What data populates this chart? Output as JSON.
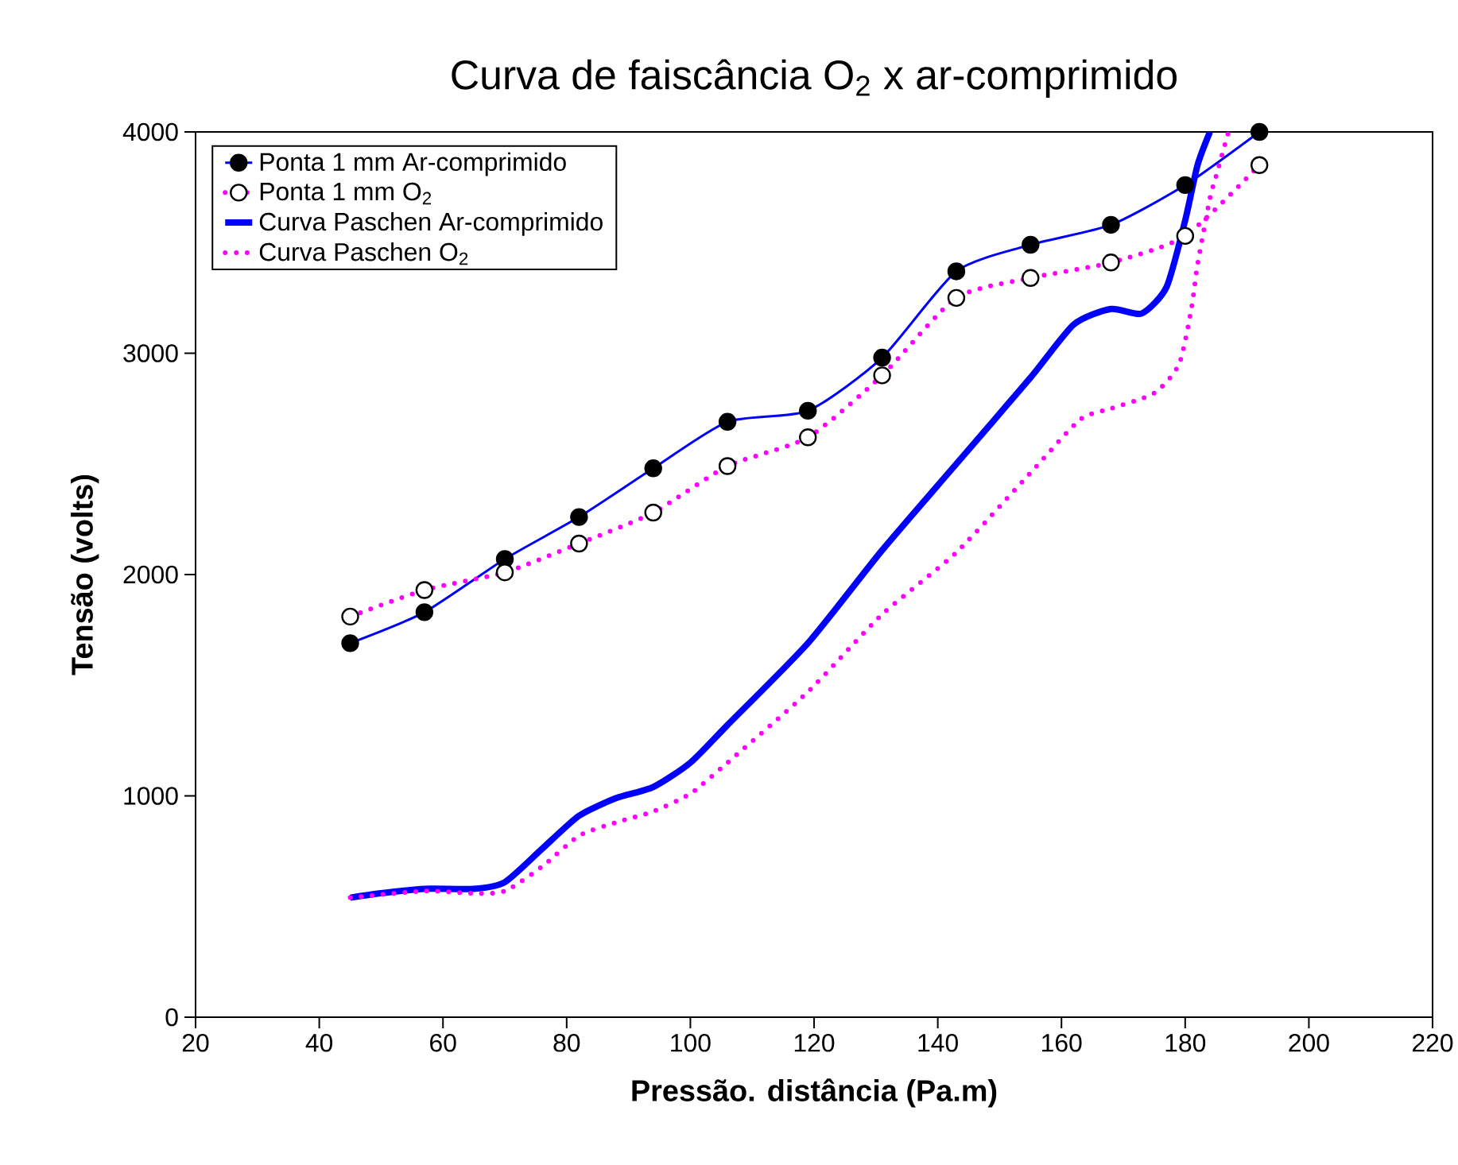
{
  "chart_data": {
    "type": "line",
    "title": "Curva de faiscância O$_{2}$ x ar-comprimido",
    "xlabel": "Pressão. distância (Pa.m)",
    "ylabel": "Tensão (volts)",
    "xlim": [
      20,
      220
    ],
    "xticks": [
      20,
      40,
      60,
      80,
      100,
      120,
      140,
      160,
      180,
      200,
      220
    ],
    "ylim": [
      0,
      4000
    ],
    "yticks": [
      0,
      1000,
      2000,
      3000,
      4000
    ],
    "grid": false,
    "legend": "top left",
    "series": [
      {
        "name": "Ponta 1 mm Ar-comprimido",
        "color": "#0000ff",
        "marker": "circle",
        "line_style": "solid",
        "x": [
          45,
          57,
          70,
          82,
          94,
          106,
          119,
          131,
          143,
          155,
          168,
          180,
          192
        ],
        "values": [
          1690,
          1830,
          2070,
          2260,
          2480,
          2690,
          2740,
          2980,
          3370,
          3490,
          3580,
          3760,
          4000
        ]
      },
      {
        "name": "Ponta 1 mm O$_{2}$",
        "color": "#ff00ff",
        "marker": "circle",
        "line_style": "dotted",
        "x": [
          45,
          57,
          70,
          82,
          94,
          106,
          119,
          131,
          143,
          155,
          168,
          180,
          192
        ],
        "values": [
          1810,
          1930,
          2010,
          2140,
          2280,
          2490,
          2620,
          2900,
          3250,
          3340,
          3410,
          3530,
          3850
        ]
      },
      {
        "name": "Curva Paschen Ar-comprimido",
        "color": "#0000ff",
        "marker": "none",
        "line_style": "solid",
        "x": [
          45,
          50,
          57,
          65,
          70,
          76,
          82,
          88,
          94,
          100,
          106,
          119,
          131,
          143,
          155,
          162,
          168,
          173,
          177,
          180,
          182,
          184
        ],
        "values": [
          540,
          560,
          580,
          580,
          610,
          760,
          910,
          990,
          1040,
          1150,
          1320,
          1690,
          2110,
          2500,
          2890,
          3130,
          3200,
          3180,
          3300,
          3600,
          3850,
          4000
        ]
      },
      {
        "name": "Curva Paschen O$_{2}$",
        "color": "#ff00ff",
        "marker": "none",
        "line_style": "dotted",
        "x": [
          45,
          57,
          65,
          70,
          76,
          82,
          88,
          94,
          100,
          106,
          119,
          131,
          143,
          155,
          163,
          168,
          175,
          179,
          181,
          182,
          184,
          185,
          187
        ],
        "values": [
          540,
          570,
          560,
          570,
          680,
          820,
          880,
          930,
          1010,
          1150,
          1470,
          1820,
          2100,
          2460,
          2700,
          2750,
          2820,
          2950,
          3200,
          3400,
          3700,
          3800,
          4000
        ]
      }
    ]
  }
}
